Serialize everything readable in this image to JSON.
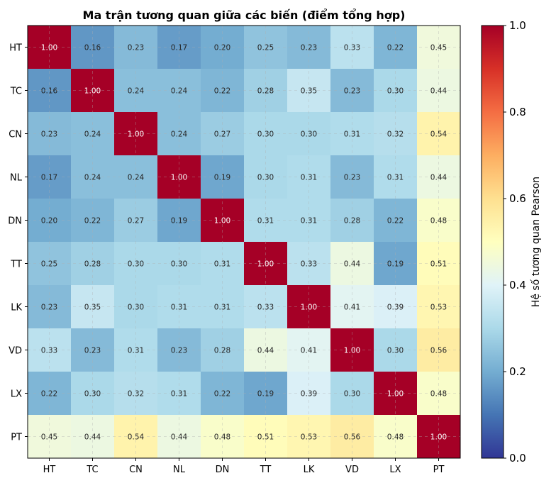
{
  "chart_data": {
    "type": "heatmap",
    "title": "Ma trận tương quan giữa các biến (điểm tổng hợp)",
    "x_labels": [
      "HT",
      "TC",
      "CN",
      "NL",
      "DN",
      "TT",
      "LK",
      "VD",
      "LX",
      "PT"
    ],
    "y_labels": [
      "HT",
      "TC",
      "CN",
      "NL",
      "DN",
      "TT",
      "LK",
      "VD",
      "LX",
      "PT"
    ],
    "values": [
      [
        1.0,
        0.16,
        0.23,
        0.17,
        0.2,
        0.25,
        0.23,
        0.33,
        0.22,
        0.45
      ],
      [
        0.16,
        1.0,
        0.24,
        0.24,
        0.22,
        0.28,
        0.35,
        0.23,
        0.3,
        0.44
      ],
      [
        0.23,
        0.24,
        1.0,
        0.24,
        0.27,
        0.3,
        0.3,
        0.31,
        0.32,
        0.54
      ],
      [
        0.17,
        0.24,
        0.24,
        1.0,
        0.19,
        0.3,
        0.31,
        0.23,
        0.31,
        0.44
      ],
      [
        0.2,
        0.22,
        0.27,
        0.19,
        1.0,
        0.31,
        0.31,
        0.28,
        0.22,
        0.48
      ],
      [
        0.25,
        0.28,
        0.3,
        0.3,
        0.31,
        1.0,
        0.33,
        0.44,
        0.19,
        0.51
      ],
      [
        0.23,
        0.35,
        0.3,
        0.31,
        0.31,
        0.33,
        1.0,
        0.41,
        0.39,
        0.53
      ],
      [
        0.33,
        0.23,
        0.31,
        0.23,
        0.28,
        0.44,
        0.41,
        1.0,
        0.3,
        0.56
      ],
      [
        0.22,
        0.3,
        0.32,
        0.31,
        0.22,
        0.19,
        0.39,
        0.3,
        1.0,
        0.48
      ],
      [
        0.45,
        0.44,
        0.54,
        0.44,
        0.48,
        0.51,
        0.53,
        0.56,
        0.48,
        1.0
      ]
    ],
    "colorbar": {
      "label": "Hệ số tương quan Pearson",
      "range": [
        0.0,
        1.0
      ],
      "ticks": [
        "0.0",
        "0.2",
        "0.4",
        "0.6",
        "0.8",
        "1.0"
      ],
      "colormap": "RdYlBu_r"
    },
    "grid": true,
    "value_format": "2 decimals"
  }
}
